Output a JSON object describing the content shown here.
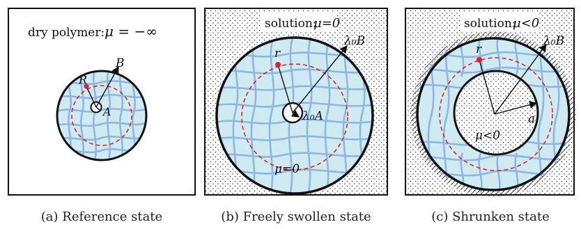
{
  "panels": [
    {
      "caption": "(a) Reference state",
      "box_label": "dry polymer:",
      "box_value": "μ = −∞",
      "label_R": "R",
      "label_B": "B",
      "label_A": "A"
    },
    {
      "caption": "(b) Freely swollen state",
      "box_label": "solution:",
      "box_value": "μ=0",
      "label_r": "r",
      "label_outer": "λ₀B",
      "label_inner": "λ₀A",
      "label_gel": "μ=0"
    },
    {
      "caption": "(c) Shrunken state",
      "box_label": "solution:",
      "box_value": "μ<0",
      "label_r": "r",
      "label_outer": "λ₀B",
      "label_a": "a",
      "label_gel": "μ<0"
    }
  ],
  "colors": {
    "gel_fill": "#cfeaf1",
    "mesh": "#8fb6e3",
    "dashed": "#d42a2a",
    "point": "#e0202a",
    "outline": "#111111"
  }
}
